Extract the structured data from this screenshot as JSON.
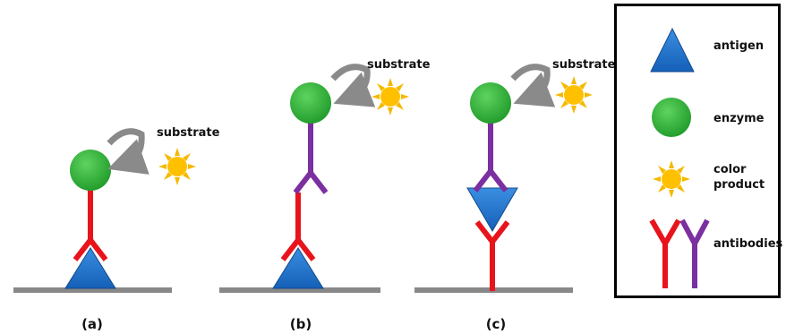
{
  "panels": [
    {
      "substrate": "substrate",
      "label": "(a)"
    },
    {
      "substrate": "substrate",
      "label": "(b)"
    },
    {
      "substrate": "substrate",
      "label": "(c)"
    }
  ],
  "legend": [
    {
      "label": "antigen"
    },
    {
      "label": "enzyme"
    },
    {
      "label": "color product"
    },
    {
      "label": "antibodies"
    }
  ]
}
